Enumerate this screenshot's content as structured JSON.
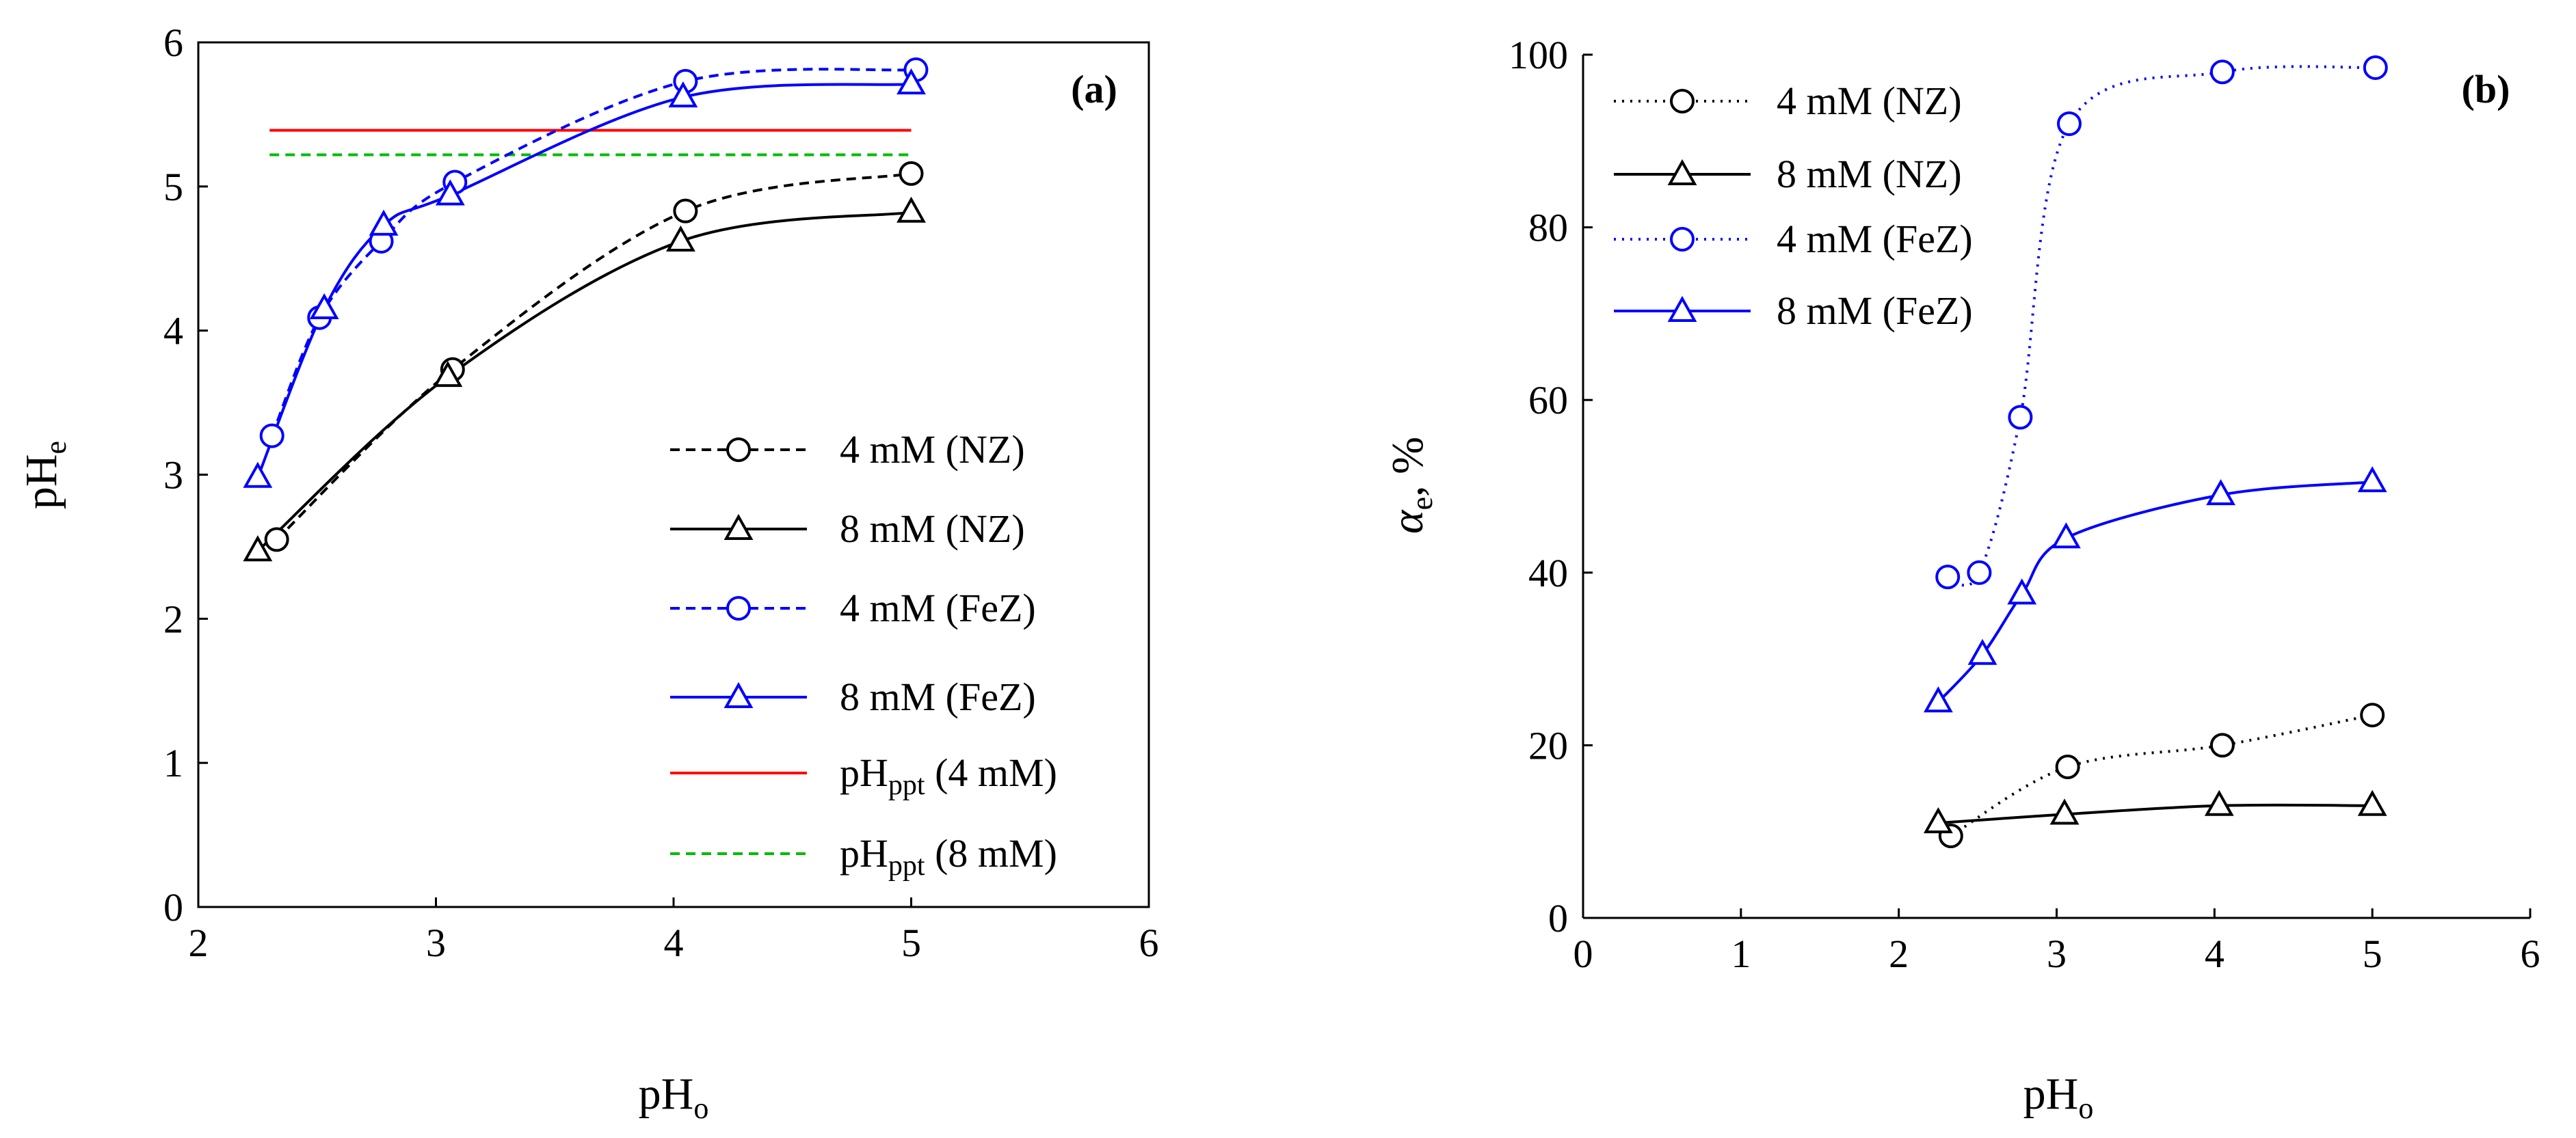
{
  "colors": {
    "black": "#000000",
    "blue": "#0000ff",
    "red": "#ff0000",
    "green": "#00bb00"
  },
  "chart_data": [
    {
      "type": "line",
      "panel_label": "(a)",
      "xlabel": {
        "main": "pH",
        "sub": "o"
      },
      "ylabel": {
        "main": "pH",
        "sub": "e"
      },
      "xlim": [
        2,
        6
      ],
      "ylim": [
        0,
        6
      ],
      "xticks": [
        "2",
        "3",
        "4",
        "5",
        "6"
      ],
      "yticks": [
        "0",
        "1",
        "2",
        "3",
        "4",
        "5",
        "6"
      ],
      "legend_position": "bottom-right",
      "series": [
        {
          "name": "4 mM (NZ)",
          "color": "#000000",
          "dash": "dashed",
          "marker": "circle",
          "x": [
            2.33,
            3.07,
            4.05,
            5.0
          ],
          "y": [
            2.55,
            3.73,
            4.83,
            5.09
          ]
        },
        {
          "name": "8 mM (NZ)",
          "color": "#000000",
          "dash": "solid",
          "marker": "triangle",
          "x": [
            2.25,
            3.05,
            4.03,
            5.0
          ],
          "y": [
            2.47,
            3.68,
            4.62,
            4.82
          ]
        },
        {
          "name": "4 mM (FeZ)",
          "color": "#0000ff",
          "dash": "dashed",
          "marker": "circle",
          "x": [
            2.31,
            2.51,
            2.77,
            3.08,
            4.05,
            5.02
          ],
          "y": [
            3.27,
            4.09,
            4.62,
            5.03,
            5.73,
            5.81
          ]
        },
        {
          "name": "8 mM (FeZ)",
          "color": "#0000ff",
          "dash": "solid",
          "marker": "triangle",
          "x": [
            2.25,
            2.53,
            2.78,
            3.06,
            4.04,
            5.0
          ],
          "y": [
            2.98,
            4.15,
            4.73,
            4.94,
            5.62,
            5.71
          ]
        }
      ],
      "reference_lines": [
        {
          "name_main": "pH",
          "name_sub": "ppt",
          "name_rest": " (4 mM)",
          "color": "#ff0000",
          "dash": "solid",
          "x": [
            2.3,
            5.0
          ],
          "y": 5.39
        },
        {
          "name_main": "pH",
          "name_sub": "ppt",
          "name_rest": " (8 mM)",
          "color": "#00bb00",
          "dash": "dashed",
          "x": [
            2.3,
            5.0
          ],
          "y": 5.22
        }
      ]
    },
    {
      "type": "line",
      "panel_label": "(b)",
      "xlabel": {
        "main": "pH",
        "sub": "o"
      },
      "ylabel": {
        "main": "α",
        "sub": "e",
        "rest": ", %"
      },
      "xlim": [
        0,
        6
      ],
      "ylim": [
        0,
        100
      ],
      "xticks": [
        "0",
        "1",
        "2",
        "3",
        "4",
        "5",
        "6"
      ],
      "yticks": [
        "0",
        "20",
        "40",
        "60",
        "80",
        "100"
      ],
      "legend_position": "top-left",
      "series": [
        {
          "name": "4 mM (NZ)",
          "color": "#000000",
          "dash": "dotted",
          "marker": "circle",
          "x": [
            2.33,
            3.07,
            4.05,
            5.0
          ],
          "y": [
            9.5,
            17.5,
            20.0,
            23.5
          ]
        },
        {
          "name": "8 mM (NZ)",
          "color": "#000000",
          "dash": "solid",
          "marker": "triangle",
          "x": [
            2.25,
            3.05,
            4.03,
            5.0
          ],
          "y": [
            11.0,
            12.0,
            13.0,
            13.0
          ]
        },
        {
          "name": "4 mM (FeZ)",
          "color": "#0000ff",
          "dash": "dotted",
          "marker": "circle",
          "x": [
            2.31,
            2.51,
            2.77,
            3.08,
            4.05,
            5.02
          ],
          "y": [
            39.5,
            40.0,
            58.0,
            92.0,
            98.0,
            98.5
          ]
        },
        {
          "name": "8 mM (FeZ)",
          "color": "#0000ff",
          "dash": "solid",
          "marker": "triangle",
          "x": [
            2.25,
            2.53,
            2.78,
            3.06,
            4.04,
            5.0
          ],
          "y": [
            25.0,
            30.5,
            37.5,
            44.0,
            49.0,
            50.5
          ]
        }
      ]
    }
  ]
}
